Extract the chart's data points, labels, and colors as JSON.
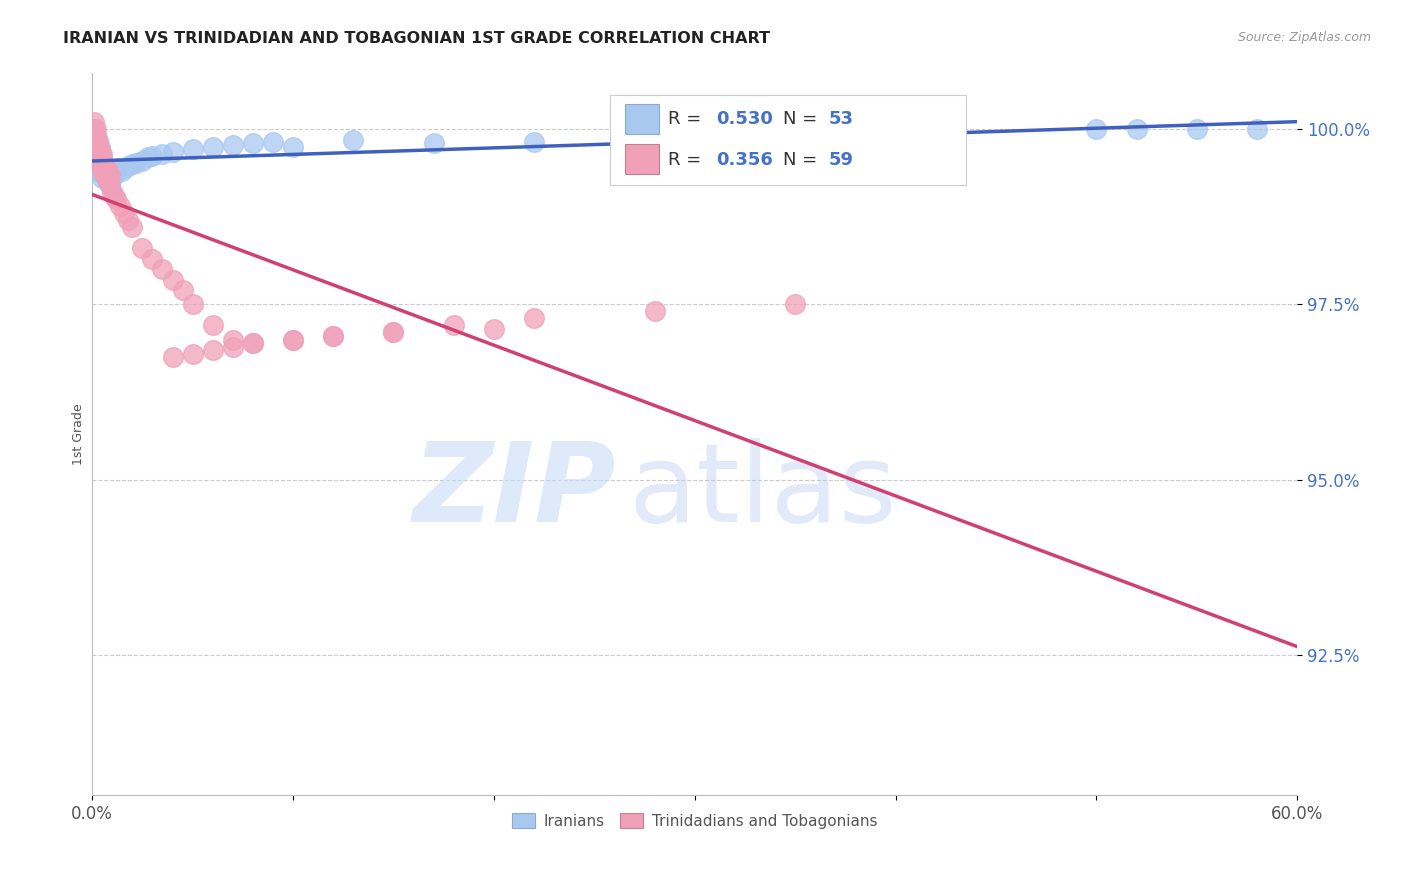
{
  "title": "IRANIAN VS TRINIDADIAN AND TOBAGONIAN 1ST GRADE CORRELATION CHART",
  "source": "Source: ZipAtlas.com",
  "ylabel": "1st Grade",
  "xlim": [
    0.0,
    0.6
  ],
  "ylim": [
    0.905,
    1.008
  ],
  "yticks": [
    0.925,
    0.95,
    0.975,
    1.0
  ],
  "ytick_labels": [
    "92.5%",
    "95.0%",
    "97.5%",
    "100.0%"
  ],
  "blue_R": 0.53,
  "blue_N": 53,
  "pink_R": 0.356,
  "pink_N": 59,
  "blue_color": "#A8C8F0",
  "pink_color": "#F0A0B8",
  "blue_line_color": "#4060C0",
  "pink_line_color": "#D04070",
  "legend_label_blue": "Iranians",
  "legend_label_pink": "Trinidadians and Tobagonians",
  "blue_x": [
    0.001,
    0.001,
    0.002,
    0.002,
    0.002,
    0.003,
    0.003,
    0.003,
    0.003,
    0.004,
    0.004,
    0.004,
    0.005,
    0.005,
    0.005,
    0.006,
    0.006,
    0.007,
    0.007,
    0.008,
    0.008,
    0.009,
    0.009,
    0.01,
    0.011,
    0.012,
    0.013,
    0.015,
    0.016,
    0.018,
    0.02,
    0.022,
    0.025,
    0.028,
    0.03,
    0.035,
    0.04,
    0.05,
    0.06,
    0.07,
    0.08,
    0.09,
    0.1,
    0.13,
    0.17,
    0.22,
    0.28,
    0.35,
    0.42,
    0.5,
    0.52,
    0.55,
    0.58
  ],
  "blue_y": [
    0.9995,
    0.9985,
    0.999,
    0.9975,
    0.996,
    0.9985,
    0.997,
    0.9955,
    0.994,
    0.9975,
    0.996,
    0.9945,
    0.996,
    0.9945,
    0.993,
    0.995,
    0.9935,
    0.9945,
    0.993,
    0.994,
    0.9925,
    0.9935,
    0.992,
    0.993,
    0.9935,
    0.994,
    0.9945,
    0.994,
    0.9945,
    0.9948,
    0.995,
    0.9952,
    0.9955,
    0.996,
    0.9962,
    0.9965,
    0.9968,
    0.9972,
    0.9975,
    0.9978,
    0.998,
    0.9982,
    0.9975,
    0.9985,
    0.998,
    0.9982,
    0.9985,
    0.9988,
    0.999,
    1.0,
    1.0,
    1.0,
    1.0
  ],
  "pink_x": [
    0.001,
    0.001,
    0.001,
    0.001,
    0.002,
    0.002,
    0.002,
    0.002,
    0.002,
    0.003,
    0.003,
    0.003,
    0.003,
    0.004,
    0.004,
    0.004,
    0.005,
    0.005,
    0.005,
    0.006,
    0.006,
    0.007,
    0.007,
    0.008,
    0.008,
    0.009,
    0.009,
    0.01,
    0.011,
    0.012,
    0.014,
    0.016,
    0.018,
    0.02,
    0.025,
    0.03,
    0.035,
    0.04,
    0.045,
    0.05,
    0.06,
    0.07,
    0.08,
    0.1,
    0.12,
    0.15,
    0.18,
    0.22,
    0.28,
    0.35,
    0.04,
    0.05,
    0.06,
    0.07,
    0.08,
    0.1,
    0.12,
    0.15,
    0.2
  ],
  "pink_y": [
    1.001,
    1.0,
    0.999,
    0.998,
    1.0,
    0.999,
    0.998,
    0.997,
    0.996,
    0.998,
    0.997,
    0.9965,
    0.995,
    0.997,
    0.996,
    0.995,
    0.9965,
    0.9955,
    0.994,
    0.995,
    0.994,
    0.9945,
    0.993,
    0.994,
    0.993,
    0.9935,
    0.992,
    0.991,
    0.9905,
    0.99,
    0.989,
    0.988,
    0.987,
    0.986,
    0.983,
    0.9815,
    0.98,
    0.9785,
    0.977,
    0.975,
    0.972,
    0.97,
    0.9695,
    0.97,
    0.9705,
    0.971,
    0.972,
    0.973,
    0.974,
    0.975,
    0.9675,
    0.968,
    0.9685,
    0.969,
    0.9695,
    0.97,
    0.9705,
    0.971,
    0.9715
  ]
}
